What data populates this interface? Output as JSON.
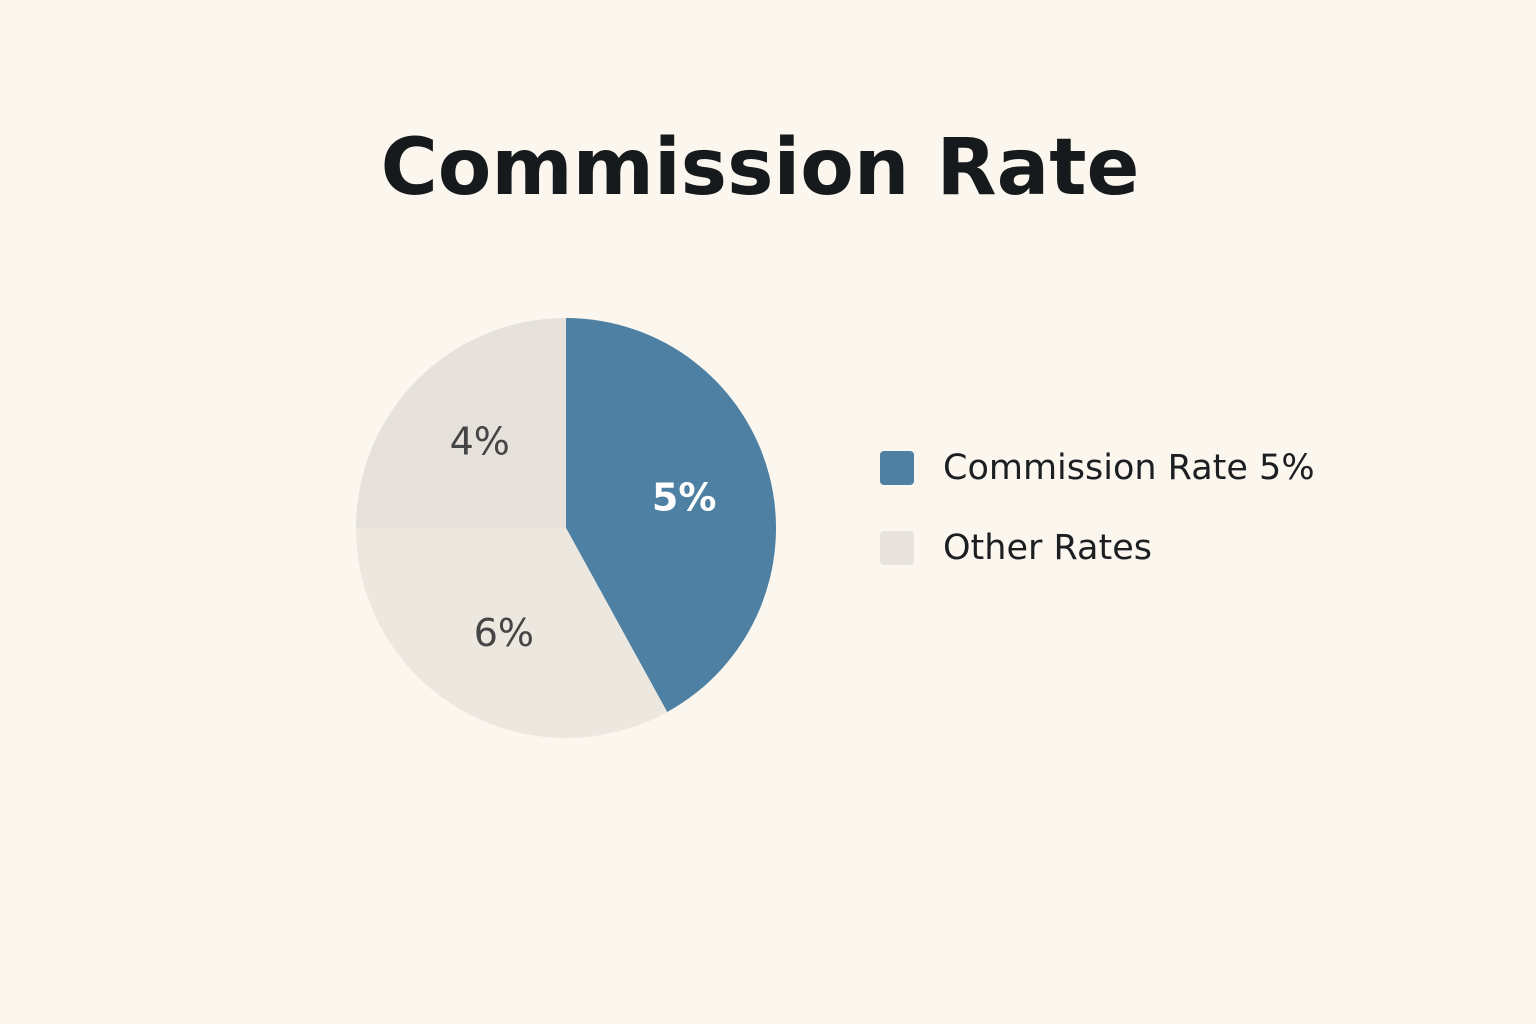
{
  "colors": {
    "background": "#fbf6ee",
    "title_text": "#171a1c"
  },
  "chart_data": {
    "type": "pie",
    "title": "Commission Rate",
    "slices": [
      {
        "label": "5%",
        "value": 42,
        "color": "#4d80a3",
        "label_color": "#ffffff"
      },
      {
        "label": "6%",
        "value": 33,
        "color": "#ece7df",
        "label_color": "#454545"
      },
      {
        "label": "4%",
        "value": 25,
        "color": "#e6e2db",
        "label_color": "#454545"
      }
    ],
    "legend": [
      {
        "label": "Commission Rate 5%",
        "color": "#4d80a3"
      },
      {
        "label": "Other Rates",
        "color": "#e8e4dd"
      }
    ],
    "legend_placement": "right"
  }
}
